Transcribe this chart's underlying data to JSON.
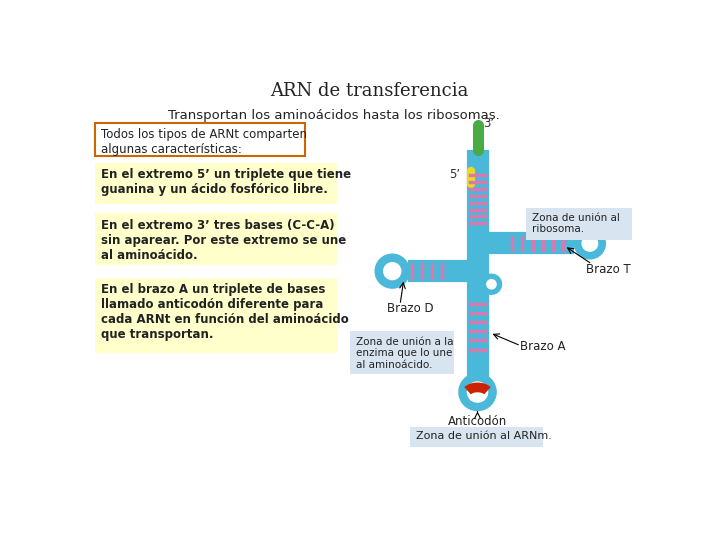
{
  "title": "ARN de transferencia",
  "subtitle": "Transportan los aminoácidos hasta los ribosomas.",
  "bg_color": "#ffffff",
  "title_fontsize": 13,
  "subtitle_fontsize": 9.5,
  "box1_text": "Todos los tipos de ARNt comparten\nalgunas características:",
  "box1_color": "#ffffff",
  "box1_border": "#cc6600",
  "box2_text": "En el extremo 5’ un triplete que tiene\nguanina y un ácido fosfórico libre.",
  "box2_color": "#ffffcc",
  "box3_text": "En el extremo 3’ tres bases (C-C-A)\nsin aparear. Por este extremo se une\nal aminoácido.",
  "box3_color": "#ffffcc",
  "box4_text": "En el brazo A un triplete de bases\nllamado anticodón diferente para\ncada ARNt en función del aminoácido\nque transportan.",
  "box4_color": "#ffffcc",
  "label_3prime": "3’",
  "label_5prime": "5’",
  "label_brazo_d": "Brazo D",
  "label_brazo_t": "Brazo T",
  "label_brazo_a": "Brazo A",
  "label_anticodon": "Anticodón",
  "label_zona_ribosoma": "Zona de unión al\nribosoma.",
  "label_zona_enzima": "Zona de unión a la\nenzima que lo une\nal aminoácido.",
  "label_zona_arnm": "Zona de unión al ARNm.",
  "tRNA_dark_blue": "#1a6e9e",
  "tRNA_light_blue": "#4ab8d8",
  "tRNA_pink": "#d87ab0",
  "tRNA_yellow": "#f0d820",
  "tRNA_green": "#4aaa44",
  "tRNA_red": "#cc2200",
  "label_box_color": "#d8e4f0"
}
